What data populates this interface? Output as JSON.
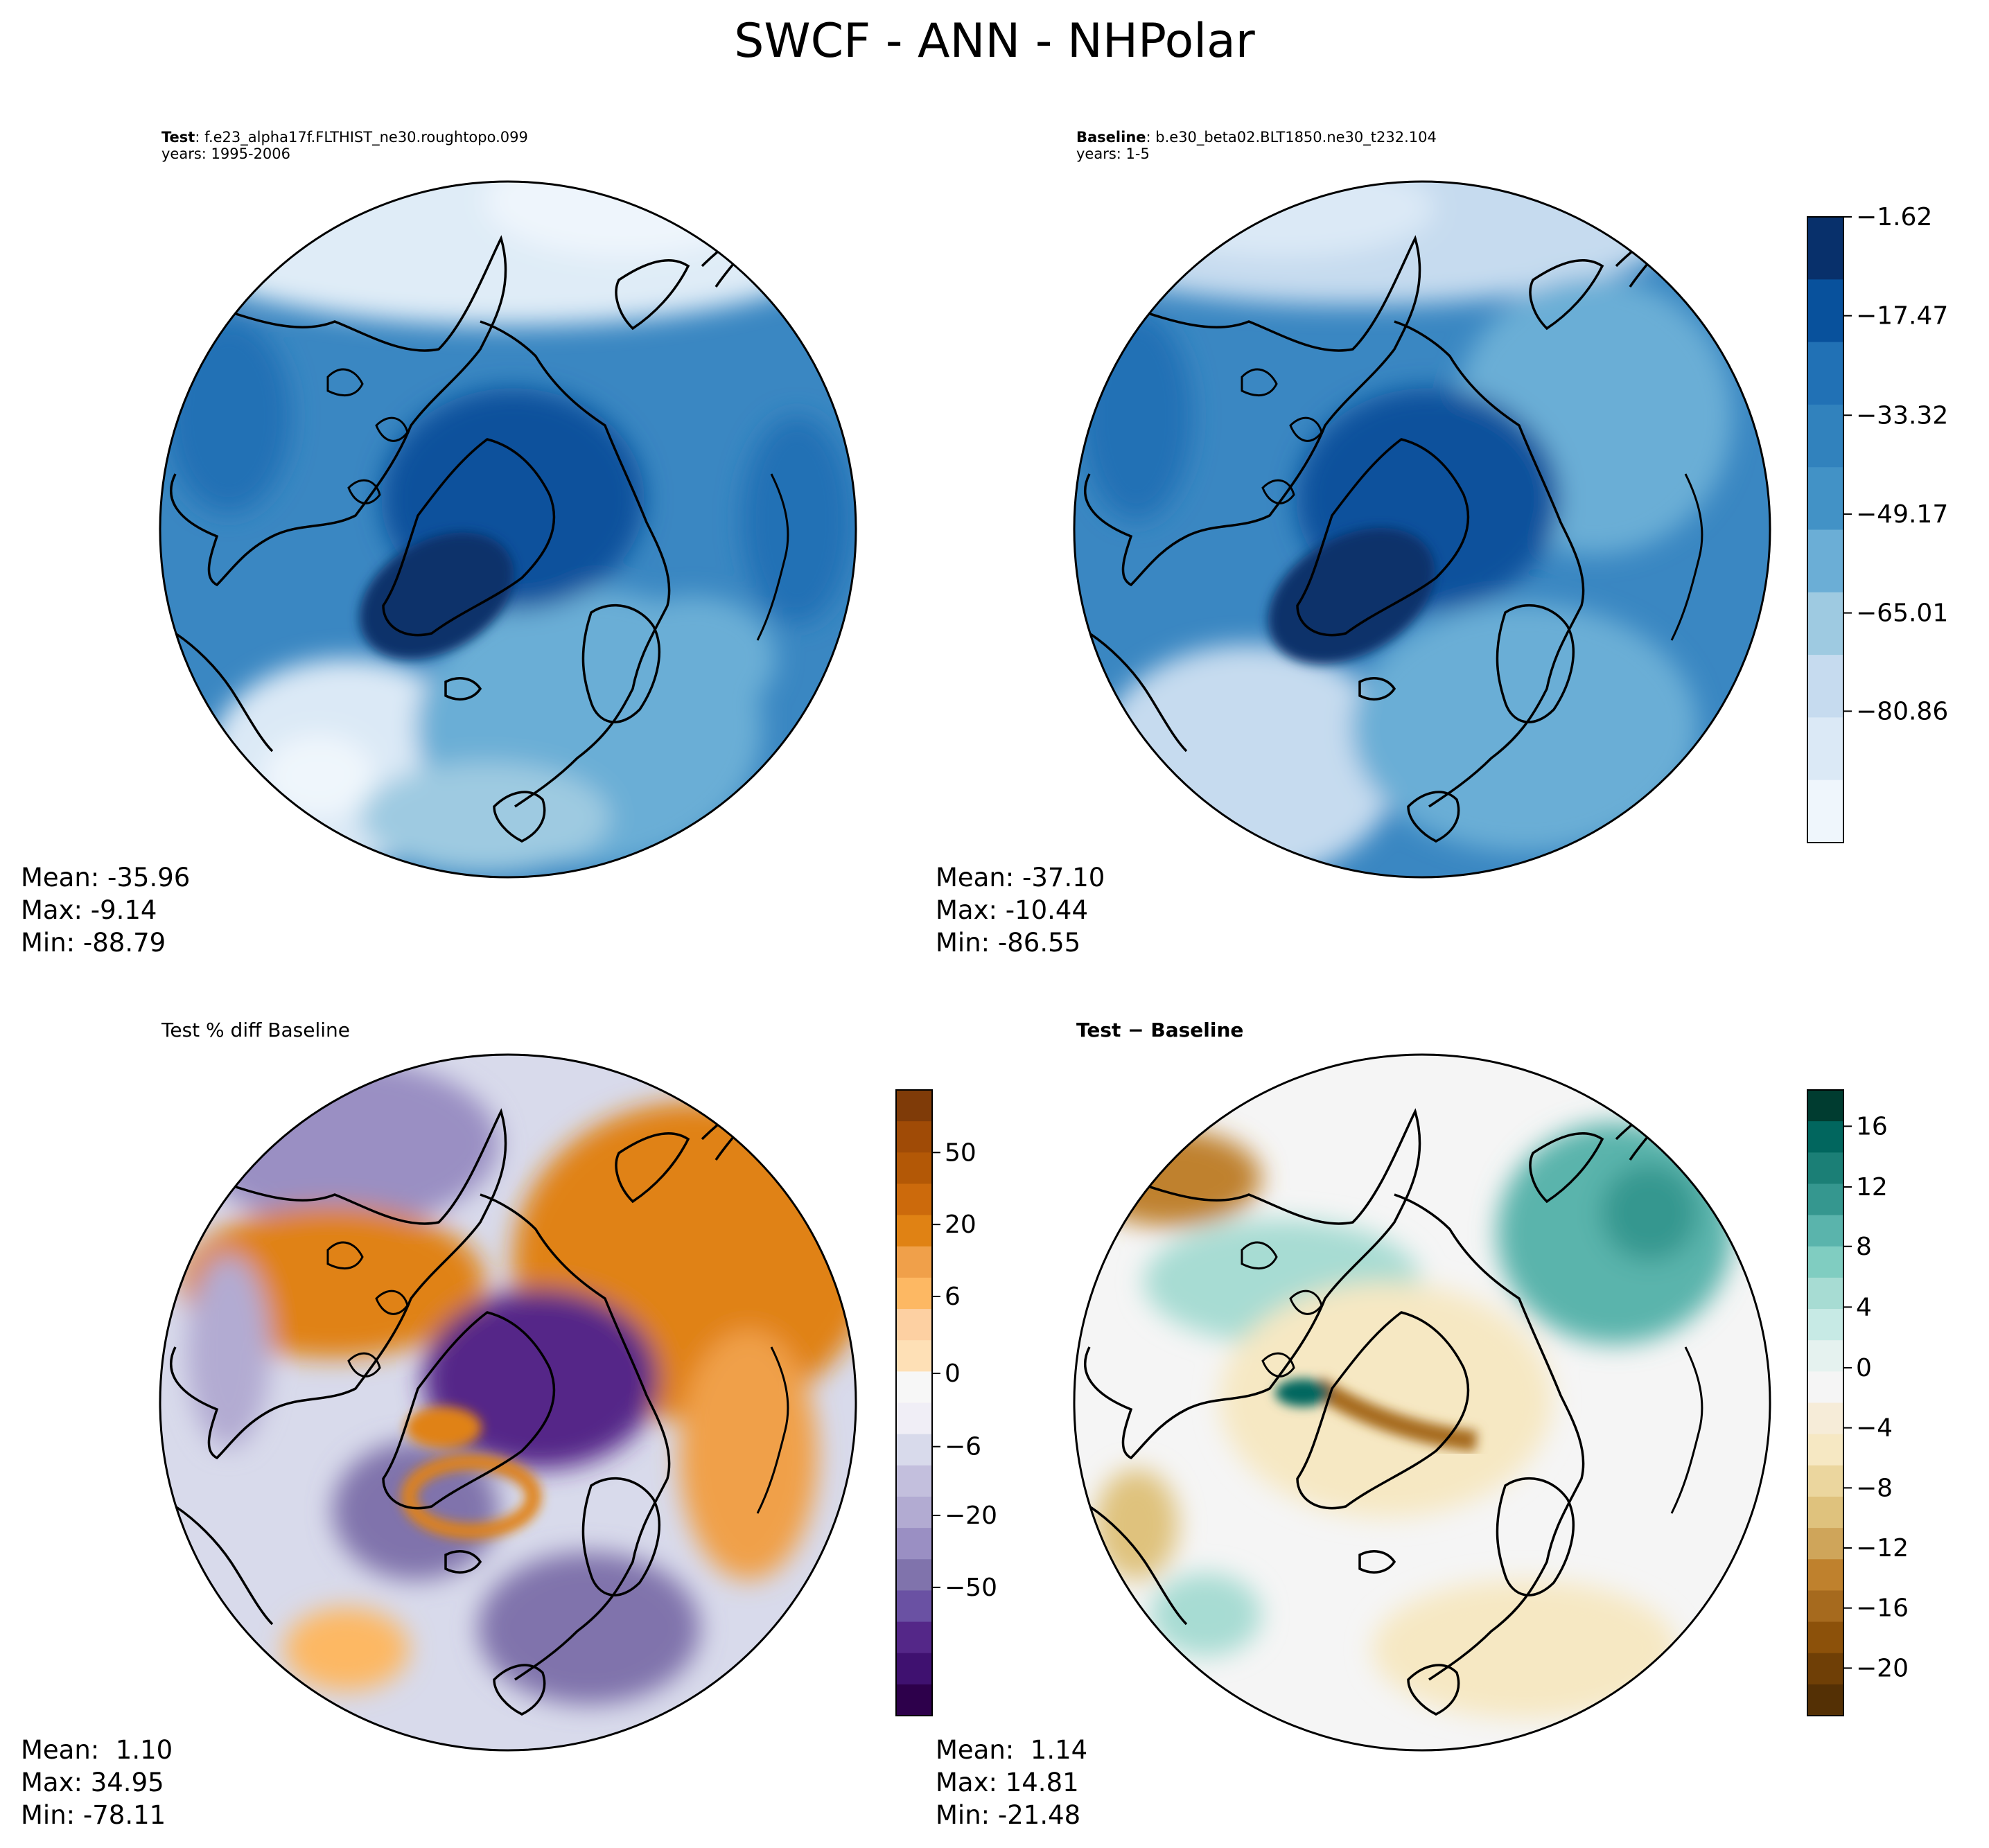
{
  "figure": {
    "title": "SWCF - ANN - NHPolar"
  },
  "panels": {
    "test": {
      "label": "Test",
      "case": ": f.e23_alpha17f.FLTHIST_ne30.roughtopo.099",
      "years": "years: 1995-2006",
      "mean": "Mean: -35.96",
      "max": "Max: -9.14",
      "min": "Min: -88.79"
    },
    "baseline": {
      "label": "Baseline",
      "case": ": b.e30_beta02.BLT1850.ne30_t232.104",
      "years": "years: 1-5",
      "mean": "Mean: -37.10",
      "max": "Max: -10.44",
      "min": "Min: -86.55"
    },
    "pct_diff": {
      "title": "Test % diff Baseline",
      "mean": "Mean:  1.10",
      "max": "Max: 34.95",
      "min": "Min: -78.11"
    },
    "diff": {
      "title": "Test − Baseline",
      "mean": "Mean:  1.14",
      "max": "Max: 14.81",
      "min": "Min: -21.48"
    }
  },
  "chart_data": [
    {
      "type": "heatmap",
      "name": "Test",
      "projection": "North polar stereographic",
      "colormap": "Blues",
      "stats": {
        "mean": -35.96,
        "max": -9.14,
        "min": -88.79
      }
    },
    {
      "type": "heatmap",
      "name": "Baseline",
      "projection": "North polar stereographic",
      "colormap": "Blues",
      "stats": {
        "mean": -37.1,
        "max": -10.44,
        "min": -86.55
      },
      "colorbar": {
        "ticks": [
          "−1.62",
          "−17.47",
          "−33.32",
          "−49.17",
          "−65.01",
          "−80.86"
        ],
        "colors": [
          "#08306b",
          "#08519c",
          "#2171b5",
          "#3182bd",
          "#4292c6",
          "#6baed6",
          "#9ecae1",
          "#c6dbef",
          "#dbe9f6",
          "#eff6fc"
        ]
      }
    },
    {
      "type": "heatmap",
      "name": "Test % diff Baseline",
      "projection": "North polar stereographic",
      "colormap": "PuOr",
      "stats": {
        "mean": 1.1,
        "max": 34.95,
        "min": -78.11
      },
      "colorbar": {
        "ticks": [
          "50",
          "20",
          "6",
          "0",
          "−6",
          "−20",
          "−50"
        ],
        "colors": [
          "#7f3b08",
          "#a04b06",
          "#b35806",
          "#cc6a0c",
          "#e08214",
          "#f0a04a",
          "#fdb863",
          "#fdd0a2",
          "#fee0b6",
          "#f7f7f7",
          "#f0eef6",
          "#d8daeb",
          "#c3bfdd",
          "#b2abd2",
          "#9a8fc3",
          "#8073ac",
          "#6a51a3",
          "#542788",
          "#3f1170",
          "#2d004b"
        ]
      }
    },
    {
      "type": "heatmap",
      "name": "Test − Baseline",
      "projection": "North polar stereographic",
      "colormap": "BrBG",
      "stats": {
        "mean": 1.14,
        "max": 14.81,
        "min": -21.48
      },
      "colorbar": {
        "ticks": [
          "16",
          "12",
          "8",
          "4",
          "0",
          "−4",
          "−8",
          "−12",
          "−16",
          "−20"
        ],
        "colors": [
          "#003c30",
          "#01665e",
          "#1b7f76",
          "#35978f",
          "#5ab4ac",
          "#80cdc1",
          "#a7dcd3",
          "#c7eae5",
          "#e5f2ef",
          "#f5f5f5",
          "#f6ecd8",
          "#f6e8c3",
          "#ebd69e",
          "#dfc27d",
          "#cfa55a",
          "#bf812d",
          "#a66a1e",
          "#8c510a",
          "#6f3f06",
          "#543005"
        ]
      }
    }
  ]
}
